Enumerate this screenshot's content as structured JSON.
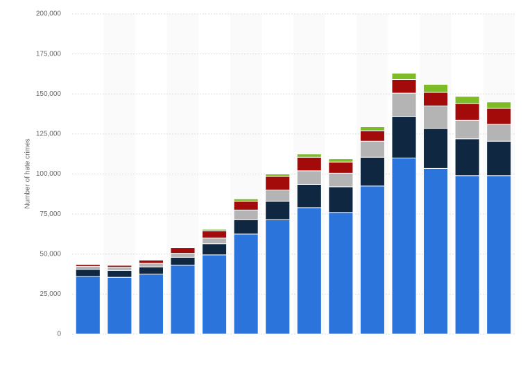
{
  "chart_data": {
    "type": "stacked_bar",
    "y_axis_label": "Number of hate crimes",
    "categories": [
      null,
      null,
      null,
      null,
      null,
      null,
      null,
      null,
      null,
      null,
      null,
      null,
      null,
      null
    ],
    "series": [
      {
        "color": "#2a74db",
        "values": [
          36000,
          35500,
          37500,
          43000,
          49500,
          62500,
          71500,
          79000,
          76000,
          92500,
          110000,
          103500,
          99000,
          99000
        ]
      },
      {
        "color": "#0f2740",
        "values": [
          4500,
          4300,
          4500,
          5000,
          7000,
          9000,
          11500,
          14500,
          16000,
          18000,
          26000,
          25000,
          23000,
          21500
        ]
      },
      {
        "color": "#b4b4b4",
        "values": [
          1800,
          2000,
          2200,
          2500,
          3500,
          6000,
          7000,
          8500,
          8500,
          10000,
          14500,
          14000,
          11500,
          10500
        ]
      },
      {
        "color": "#a30b0b",
        "values": [
          1200,
          1200,
          2000,
          3500,
          4500,
          5500,
          8500,
          8500,
          7000,
          6500,
          8500,
          8500,
          10500,
          10000
        ]
      },
      {
        "color": "#7dbb27",
        "values": [
          300,
          300,
          300,
          300,
          1000,
          1500,
          1500,
          2000,
          2000,
          2500,
          4000,
          5000,
          4500,
          4000
        ]
      }
    ],
    "ylim": [
      0,
      200000
    ],
    "yticks": [
      0,
      {
        "value": 25000,
        "label": "25,000"
      },
      {
        "value": 50000,
        "label": "50,000"
      },
      {
        "value": 75000,
        "label": "75,000"
      },
      {
        "value": 100000,
        "label": "100,000"
      },
      {
        "value": 125000,
        "label": "125,000"
      },
      {
        "value": 150000,
        "label": "150,000"
      },
      {
        "value": 175000,
        "label": "175,000"
      },
      {
        "value": 200000,
        "label": "200,000"
      }
    ],
    "grid": true
  }
}
